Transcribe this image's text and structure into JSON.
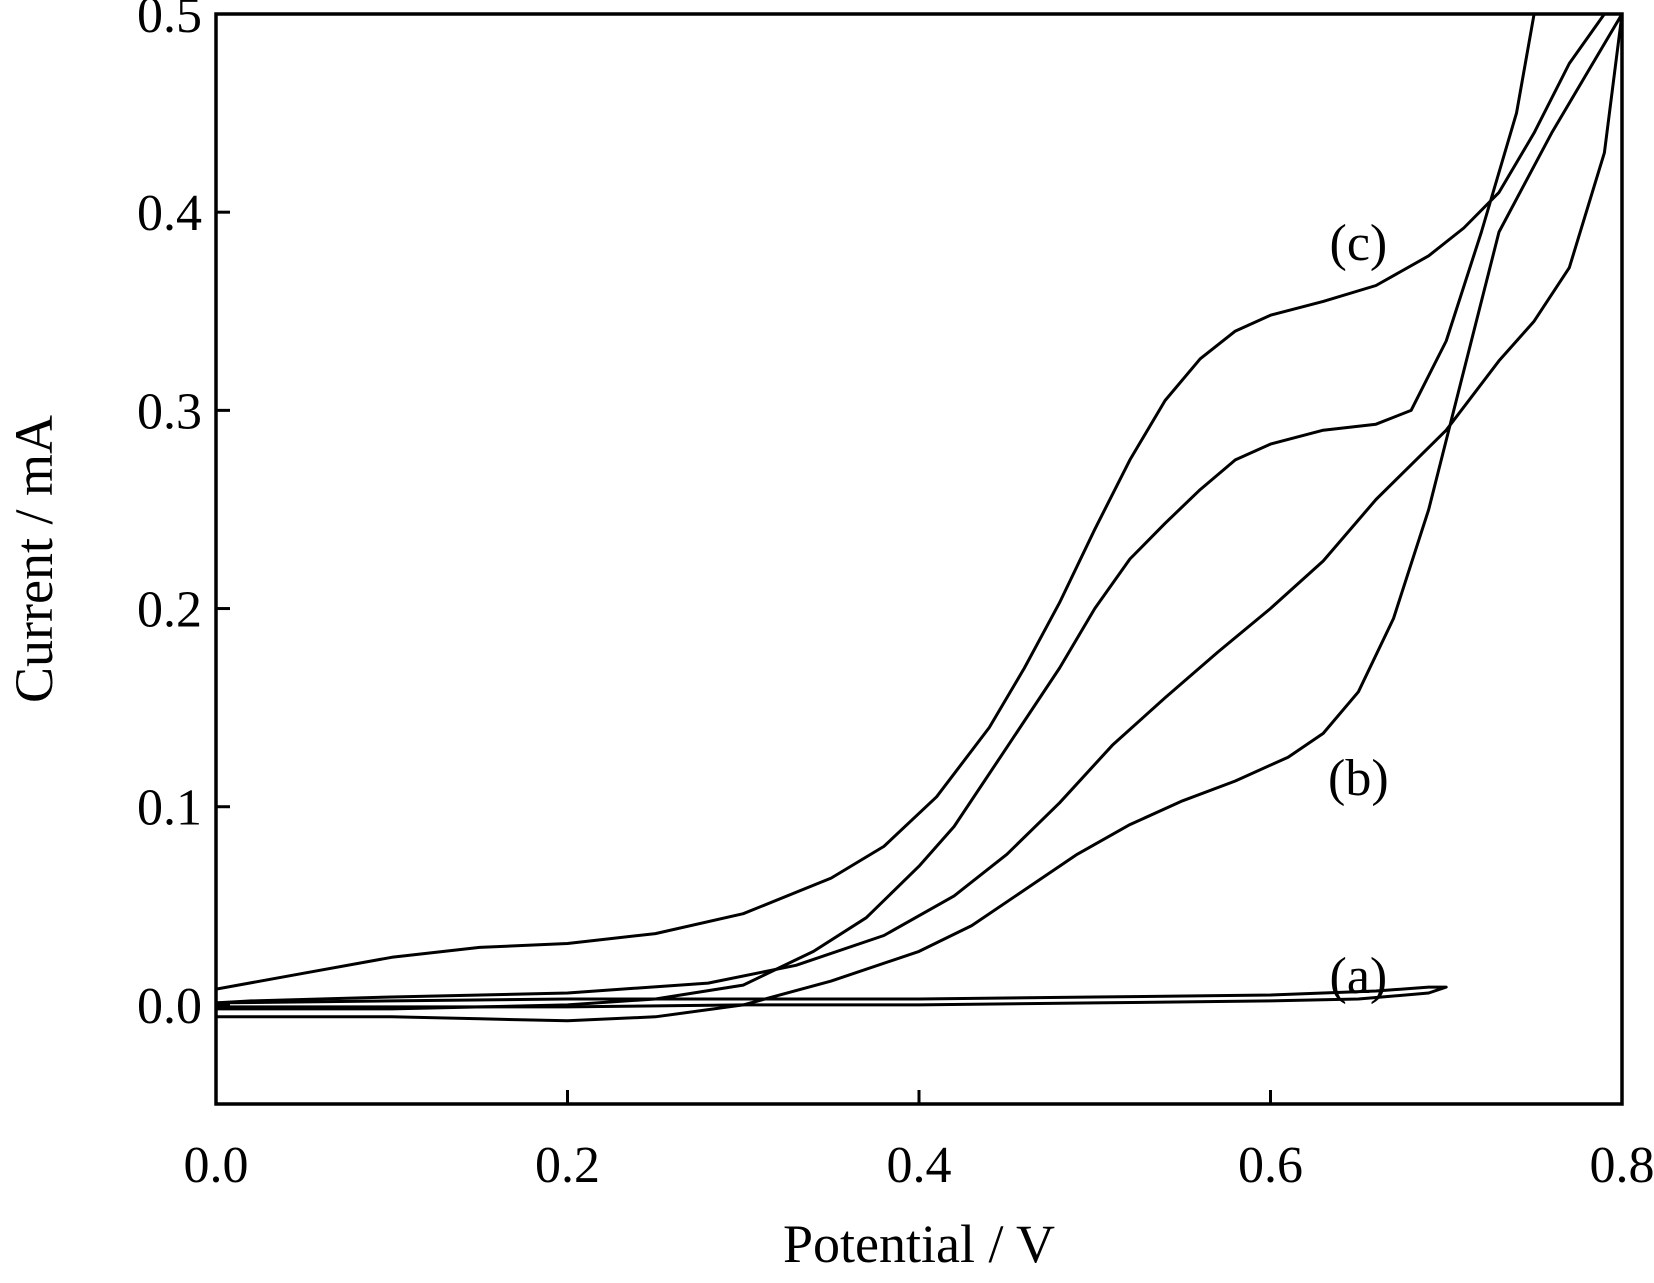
{
  "chart_data": {
    "type": "line",
    "xlabel": "Potential / V",
    "ylabel": "Current / mA",
    "xlim": [
      0.0,
      0.8
    ],
    "ylim": [
      -0.05,
      0.5
    ],
    "x_ticks": [
      0.0,
      0.2,
      0.4,
      0.6,
      0.8
    ],
    "x_tick_labels": [
      "0.0",
      "0.2",
      "0.4",
      "0.6",
      "0.8"
    ],
    "y_ticks": [
      0.0,
      0.1,
      0.2,
      0.3,
      0.4,
      0.5
    ],
    "y_tick_labels": [
      "0.0",
      "0.1",
      "0.2",
      "0.3",
      "0.4",
      "0.5"
    ],
    "grid": false,
    "legend": "none",
    "colors": {
      "line": "#000000",
      "background": "#ffffff"
    },
    "annotations": [
      {
        "text": "(a)",
        "x": 0.65,
        "y": 0.015
      },
      {
        "text": "(b)",
        "x": 0.65,
        "y": 0.115
      },
      {
        "text": "(c)",
        "x": 0.65,
        "y": 0.385
      }
    ],
    "series": [
      {
        "label": "(a)",
        "points": [
          [
            0.0,
            -0.001
          ],
          [
            0.1,
            -0.001
          ],
          [
            0.2,
            -0.001
          ],
          [
            0.3,
            0.0
          ],
          [
            0.4,
            0.0
          ],
          [
            0.5,
            0.001
          ],
          [
            0.6,
            0.002
          ],
          [
            0.65,
            0.003
          ],
          [
            0.69,
            0.006
          ],
          [
            0.7,
            0.009
          ],
          [
            0.69,
            0.009
          ],
          [
            0.66,
            0.007
          ],
          [
            0.6,
            0.005
          ],
          [
            0.5,
            0.004
          ],
          [
            0.4,
            0.003
          ],
          [
            0.3,
            0.003
          ],
          [
            0.2,
            0.003
          ],
          [
            0.1,
            0.002
          ],
          [
            0.0,
            0.001
          ]
        ]
      },
      {
        "label": "(b)",
        "points": [
          [
            0.0,
            -0.006
          ],
          [
            0.1,
            -0.006
          ],
          [
            0.15,
            -0.007
          ],
          [
            0.2,
            -0.008
          ],
          [
            0.25,
            -0.006
          ],
          [
            0.3,
            0.0
          ],
          [
            0.35,
            0.012
          ],
          [
            0.4,
            0.027
          ],
          [
            0.43,
            0.04
          ],
          [
            0.46,
            0.058
          ],
          [
            0.49,
            0.076
          ],
          [
            0.52,
            0.091
          ],
          [
            0.55,
            0.103
          ],
          [
            0.58,
            0.113
          ],
          [
            0.61,
            0.125
          ],
          [
            0.63,
            0.137
          ],
          [
            0.65,
            0.158
          ],
          [
            0.67,
            0.195
          ],
          [
            0.69,
            0.25
          ],
          [
            0.71,
            0.32
          ],
          [
            0.73,
            0.39
          ],
          [
            0.76,
            0.44
          ],
          [
            0.78,
            0.47
          ],
          [
            0.8,
            0.5
          ],
          [
            0.79,
            0.43
          ],
          [
            0.77,
            0.372
          ],
          [
            0.75,
            0.345
          ],
          [
            0.73,
            0.325
          ],
          [
            0.7,
            0.29
          ],
          [
            0.66,
            0.255
          ],
          [
            0.63,
            0.224
          ],
          [
            0.6,
            0.2
          ],
          [
            0.57,
            0.178
          ],
          [
            0.54,
            0.155
          ],
          [
            0.51,
            0.131
          ],
          [
            0.48,
            0.102
          ],
          [
            0.45,
            0.076
          ],
          [
            0.42,
            0.055
          ],
          [
            0.38,
            0.035
          ],
          [
            0.33,
            0.02
          ],
          [
            0.28,
            0.011
          ],
          [
            0.2,
            0.006
          ],
          [
            0.1,
            0.004
          ],
          [
            0.02,
            0.002
          ],
          [
            0.0,
            0.001
          ]
        ]
      },
      {
        "label": "(c)",
        "points": [
          [
            0.0,
            0.008
          ],
          [
            0.05,
            0.016
          ],
          [
            0.1,
            0.024
          ],
          [
            0.15,
            0.029
          ],
          [
            0.2,
            0.031
          ],
          [
            0.25,
            0.036
          ],
          [
            0.3,
            0.046
          ],
          [
            0.35,
            0.064
          ],
          [
            0.38,
            0.08
          ],
          [
            0.41,
            0.105
          ],
          [
            0.44,
            0.14
          ],
          [
            0.46,
            0.17
          ],
          [
            0.48,
            0.203
          ],
          [
            0.5,
            0.24
          ],
          [
            0.52,
            0.275
          ],
          [
            0.54,
            0.305
          ],
          [
            0.56,
            0.326
          ],
          [
            0.58,
            0.34
          ],
          [
            0.6,
            0.348
          ],
          [
            0.63,
            0.355
          ],
          [
            0.66,
            0.363
          ],
          [
            0.69,
            0.378
          ],
          [
            0.71,
            0.392
          ],
          [
            0.73,
            0.41
          ],
          [
            0.75,
            0.44
          ],
          [
            0.77,
            0.475
          ],
          [
            0.79,
            0.5
          ],
          [
            0.75,
            0.5
          ],
          [
            0.74,
            0.45
          ],
          [
            0.72,
            0.39
          ],
          [
            0.7,
            0.335
          ],
          [
            0.68,
            0.3
          ],
          [
            0.66,
            0.293
          ],
          [
            0.63,
            0.29
          ],
          [
            0.6,
            0.283
          ],
          [
            0.58,
            0.275
          ],
          [
            0.56,
            0.26
          ],
          [
            0.54,
            0.243
          ],
          [
            0.52,
            0.225
          ],
          [
            0.5,
            0.2
          ],
          [
            0.48,
            0.17
          ],
          [
            0.45,
            0.13
          ],
          [
            0.42,
            0.09
          ],
          [
            0.4,
            0.07
          ],
          [
            0.37,
            0.044
          ],
          [
            0.34,
            0.027
          ],
          [
            0.3,
            0.01
          ],
          [
            0.25,
            0.003
          ],
          [
            0.2,
            0.0
          ],
          [
            0.1,
            -0.002
          ],
          [
            0.0,
            -0.002
          ]
        ]
      }
    ]
  }
}
